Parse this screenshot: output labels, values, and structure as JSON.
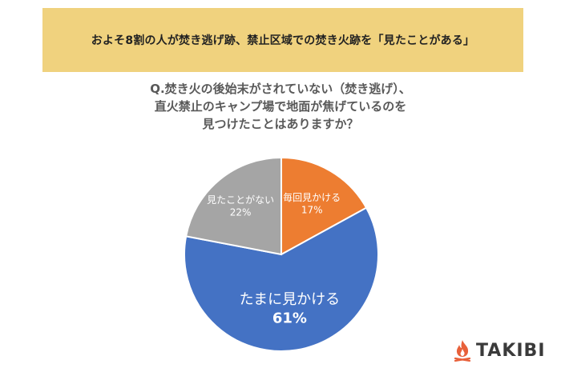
{
  "banner": {
    "title": "およそ8割の人が焚き逃げ跡、禁止区域での焚き火跡を「見たことがある」"
  },
  "question": {
    "lines": [
      "Q.焚き火の後始末がされていない（焚き逃げ）、",
      "直火禁止のキャンプ場で地面が焦げているのを",
      "見つけたことはありますか？"
    ]
  },
  "chart_data": {
    "type": "pie",
    "slices": [
      {
        "label": "毎回見かける",
        "value": 17,
        "value_label": "17%",
        "color": "#ed7d31"
      },
      {
        "label": "たまに見かける",
        "value": 61,
        "value_label": "61%",
        "color": "#4472c4"
      },
      {
        "label": "見たことがない",
        "value": 22,
        "value_label": "22%",
        "color": "#a5a5a5"
      }
    ],
    "start_angle_deg": 0,
    "direction": "clockwise",
    "data_labels_inside": true
  },
  "logo": {
    "text": "TAKIBI",
    "icon": "flame-icon",
    "color": "#e8603a"
  }
}
